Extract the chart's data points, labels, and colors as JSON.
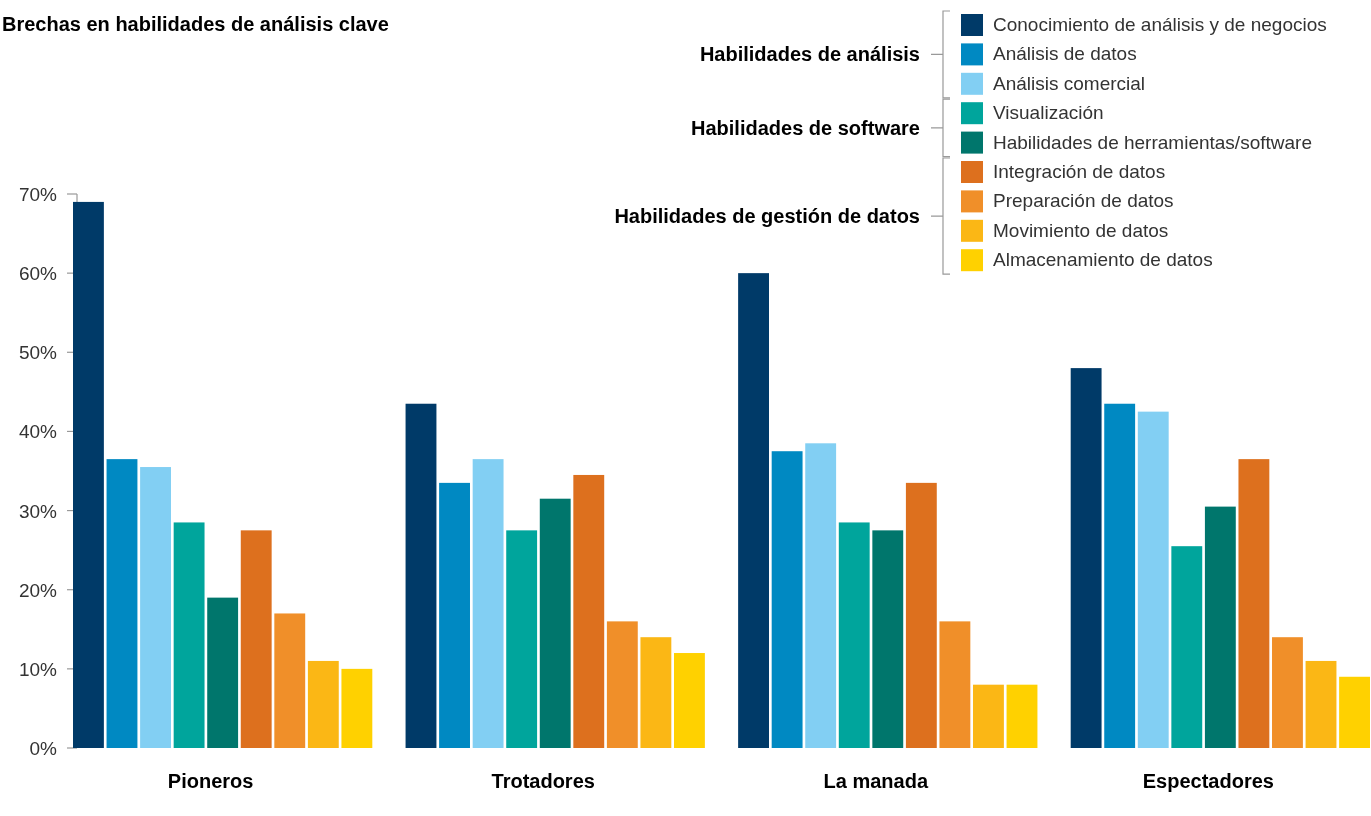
{
  "chart_data": {
    "type": "bar",
    "title": "Brechas en habilidades de análisis clave",
    "categories": [
      "Pioneros",
      "Trotadores",
      "La manada",
      "Espectadores"
    ],
    "ylim": [
      0,
      70
    ],
    "yticks": [
      {
        "value": 0,
        "label": "0%"
      },
      {
        "value": 10,
        "label": "10%"
      },
      {
        "value": 20,
        "label": "20%"
      },
      {
        "value": 30,
        "label": "30%"
      },
      {
        "value": 40,
        "label": "40%"
      },
      {
        "value": 50,
        "label": "50%"
      },
      {
        "value": 60,
        "label": "60%"
      },
      {
        "value": 70,
        "label": "70%"
      }
    ],
    "grid": false,
    "legend": "top right",
    "annotations": [
      "Habilidades de análisis",
      "Habilidades de software",
      "Habilidades de gestión de datos"
    ],
    "series": [
      {
        "name": "Conocimiento de análisis y de negocios",
        "color": "#003a68",
        "values": [
          69,
          43.5,
          60,
          48
        ]
      },
      {
        "name": "Análisis de datos",
        "color": "#0089c2",
        "values": [
          36.5,
          33.5,
          37.5,
          43.5
        ]
      },
      {
        "name": "Análisis comercial",
        "color": "#82cff3",
        "values": [
          35.5,
          36.5,
          38.5,
          42.5
        ]
      },
      {
        "name": "Visualización",
        "color": "#00a59c",
        "values": [
          28.5,
          27.5,
          28.5,
          25.5
        ]
      },
      {
        "name": "Habilidades de herramientas/software",
        "color": "#00766c",
        "values": [
          19,
          31.5,
          27.5,
          30.5
        ]
      },
      {
        "name": "Integración de datos",
        "color": "#dd701e",
        "values": [
          27.5,
          34.5,
          33.5,
          36.5
        ]
      },
      {
        "name": "Preparación de datos",
        "color": "#f08f29",
        "values": [
          17,
          16,
          16,
          14
        ]
      },
      {
        "name": "Movimiento de datos",
        "color": "#fbb715",
        "values": [
          11,
          14,
          8,
          11
        ]
      },
      {
        "name": "Almacenamiento de datos",
        "color": "#ffd100",
        "values": [
          10,
          12,
          8,
          9
        ]
      }
    ]
  }
}
